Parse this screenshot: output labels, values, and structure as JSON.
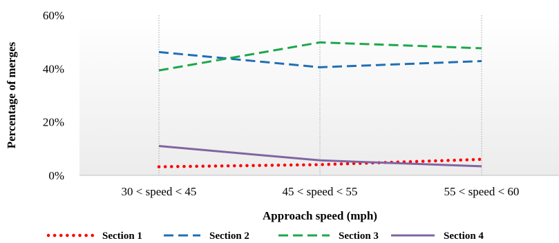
{
  "chart_data": {
    "type": "line",
    "title": "",
    "xlabel": "Approach speed (mph)",
    "ylabel": "Percentage of merges",
    "categories": [
      "30 < speed < 45",
      "45 < speed < 55",
      "55 < speed < 60"
    ],
    "ylim": [
      0,
      60
    ],
    "yticks": [
      0,
      20,
      40,
      60
    ],
    "y_tick_suffix": "%",
    "grid": "vertical dotted lines at categories",
    "legend_position": "bottom",
    "series": [
      {
        "name": "Section 1",
        "values": [
          3.2,
          4.0,
          6.0
        ],
        "color": "#ff0000",
        "style": "dotted"
      },
      {
        "name": "Section 2",
        "values": [
          46.2,
          40.5,
          42.8
        ],
        "color": "#1f6fb4",
        "style": "dashed"
      },
      {
        "name": "Section 3",
        "values": [
          39.3,
          49.8,
          47.6
        ],
        "color": "#1aa84a",
        "style": "dashed"
      },
      {
        "name": "Section 4",
        "values": [
          11.0,
          5.6,
          3.4
        ],
        "color": "#8064a2",
        "style": "solid"
      }
    ]
  }
}
